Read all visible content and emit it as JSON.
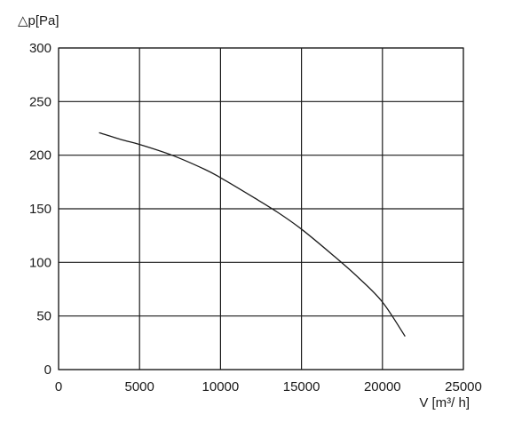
{
  "chart_data": {
    "type": "line",
    "ylabel": "△p[Pa]",
    "xlabel": "V [m³/ h]",
    "xlim": [
      0,
      25000
    ],
    "ylim": [
      0,
      300
    ],
    "x_ticks": [
      0,
      5000,
      10000,
      15000,
      20000,
      25000
    ],
    "y_ticks": [
      0,
      50,
      100,
      150,
      200,
      250,
      300
    ],
    "x_tick_labels": [
      "0",
      "5000",
      "10000",
      "15000",
      "20000",
      "25000"
    ],
    "y_tick_labels": [
      "0",
      "50",
      "100",
      "150",
      "200",
      "250",
      "300"
    ],
    "grid": true,
    "series": [
      {
        "x": [
          2500,
          4000,
          5000,
          7000,
          9000,
          10000,
          12000,
          13500,
          15000,
          17000,
          18500,
          20000,
          21400
        ],
        "y": [
          221,
          214,
          210,
          200,
          187,
          179,
          161,
          147,
          131,
          106,
          86,
          63,
          31
        ],
        "color": "#1a1a1a"
      }
    ]
  }
}
